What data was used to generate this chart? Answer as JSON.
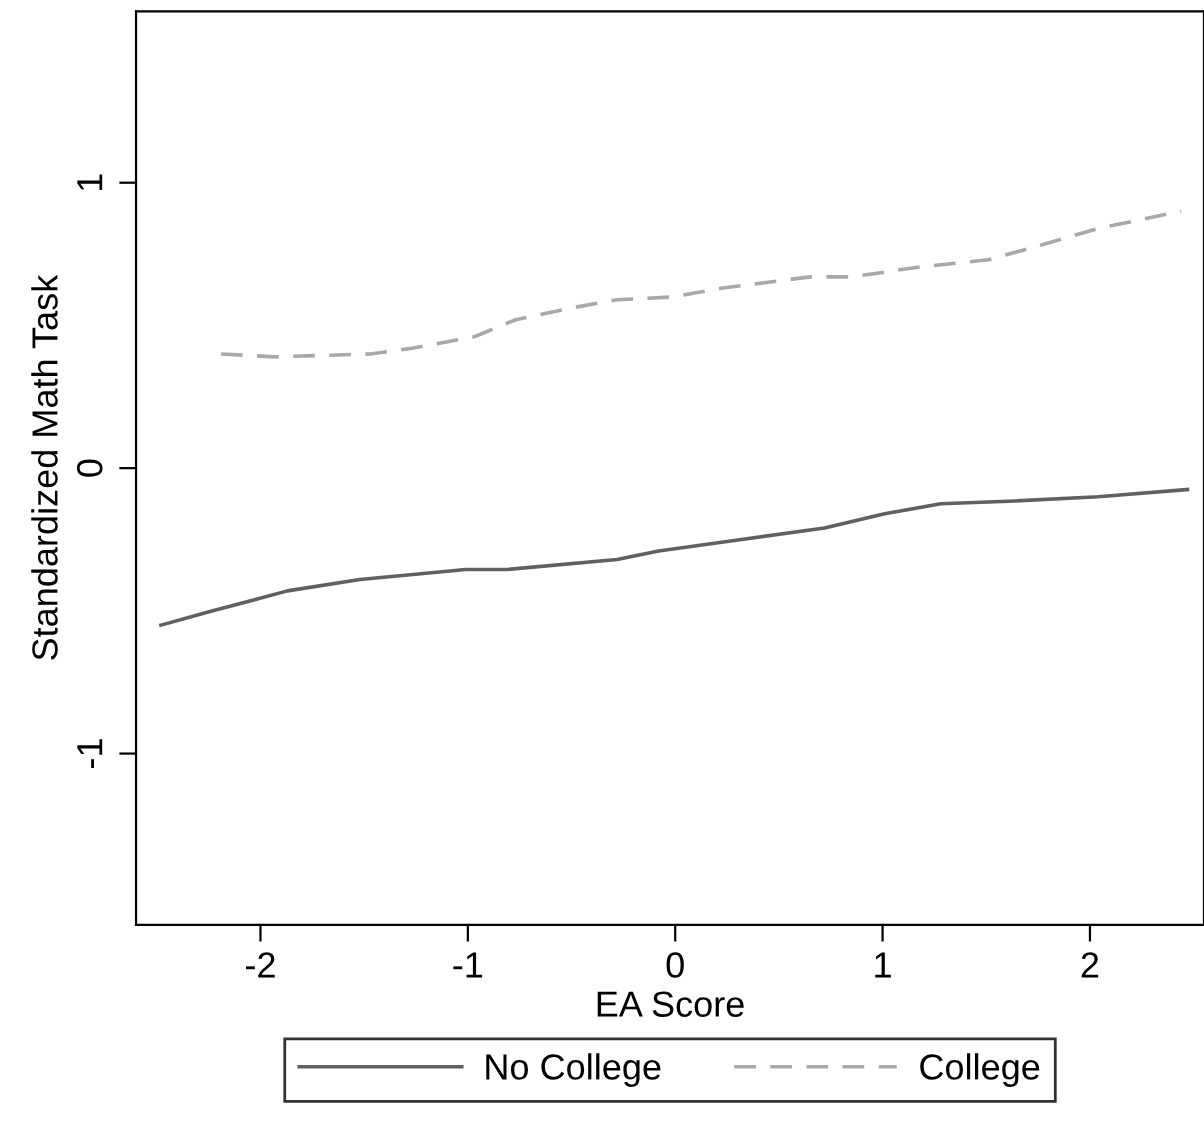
{
  "chart_data": {
    "type": "line",
    "xlabel": "EA Score",
    "ylabel": "Standardized Math Task",
    "xlim": [
      -2.6,
      2.55
    ],
    "ylim": [
      -1.6,
      1.6
    ],
    "xticks": [
      -2,
      -1,
      0,
      1,
      2
    ],
    "yticks": [
      -1,
      0,
      1
    ],
    "grid": false,
    "legend": "bottom",
    "marker": "none",
    "series": [
      {
        "name": "No College",
        "color": "#606060",
        "line_style": "solid",
        "x": [
          -2.48,
          -2.23,
          -1.87,
          -1.52,
          -1.01,
          -0.81,
          -0.28,
          -0.08,
          0.32,
          0.72,
          1.01,
          1.28,
          1.64,
          2.04,
          2.47
        ],
        "values": [
          -0.55,
          -0.5,
          -0.43,
          -0.39,
          -0.355,
          -0.355,
          -0.32,
          -0.29,
          -0.25,
          -0.21,
          -0.16,
          -0.125,
          -0.115,
          -0.1,
          -0.075
        ]
      },
      {
        "name": "College",
        "color": "#a8a8a8",
        "line_style": "dashed",
        "x": [
          -2.19,
          -1.93,
          -1.47,
          -1.27,
          -0.97,
          -0.77,
          -0.51,
          -0.28,
          -0.01,
          0.22,
          0.38,
          0.65,
          0.85,
          1.18,
          1.51,
          1.71,
          2.04,
          2.44
        ],
        "values": [
          0.4,
          0.39,
          0.4,
          0.42,
          0.46,
          0.52,
          0.56,
          0.59,
          0.6,
          0.63,
          0.645,
          0.67,
          0.67,
          0.705,
          0.73,
          0.77,
          0.84,
          0.9
        ]
      }
    ]
  }
}
